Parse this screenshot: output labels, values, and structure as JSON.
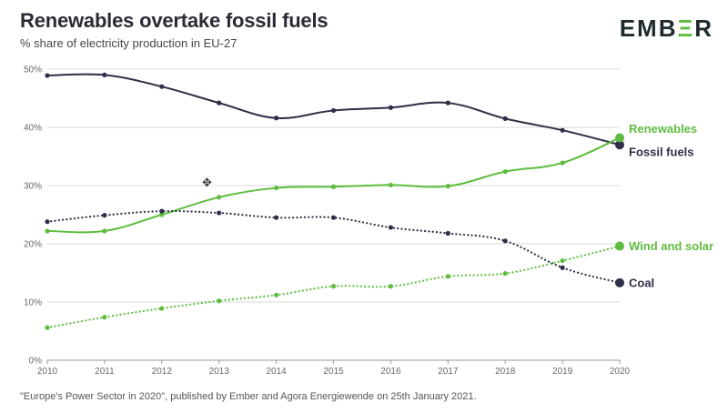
{
  "header": {
    "title": "Renewables overtake fossil fuels",
    "subtitle": "% share of electricity production in EU-27",
    "logo_prefix": "EMB",
    "logo_highlight": "Ξ",
    "logo_suffix": "R"
  },
  "footer": {
    "source": "\"Europe's Power Sector in 2020\", published by Ember and Agora Energiewende on 25th January 2021."
  },
  "colors": {
    "dark": "#2e2e48",
    "green": "#5ebd3e",
    "grid": "#d9d9d9",
    "axis": "#9a9a9a"
  },
  "chart_data": {
    "type": "line",
    "x": [
      2010,
      2011,
      2012,
      2013,
      2014,
      2015,
      2016,
      2017,
      2018,
      2019,
      2020
    ],
    "ylim": [
      0,
      50
    ],
    "yticks": [
      0,
      10,
      20,
      30,
      40,
      50
    ],
    "ytick_labels": [
      "0%",
      "10%",
      "20%",
      "30%",
      "40%",
      "50%"
    ],
    "grid": true,
    "series": [
      {
        "name": "Fossil fuels",
        "color": "dark",
        "dash": "solid",
        "values": [
          48.9,
          49.0,
          47.0,
          44.2,
          41.6,
          42.9,
          43.4,
          44.2,
          41.5,
          39.5,
          37.0
        ]
      },
      {
        "name": "Renewables",
        "color": "green",
        "dash": "solid",
        "values": [
          22.2,
          22.2,
          25.0,
          28.0,
          29.6,
          29.8,
          30.1,
          29.9,
          32.4,
          33.9,
          38.2
        ]
      },
      {
        "name": "Coal",
        "color": "dark",
        "dash": "dotted",
        "values": [
          23.8,
          24.9,
          25.6,
          25.3,
          24.5,
          24.5,
          22.8,
          21.8,
          20.5,
          15.9,
          13.3
        ]
      },
      {
        "name": "Wind and solar",
        "color": "green",
        "dash": "dotted",
        "values": [
          5.6,
          7.4,
          8.9,
          10.2,
          11.2,
          12.7,
          12.7,
          14.4,
          14.9,
          17.1,
          19.6
        ]
      }
    ]
  }
}
